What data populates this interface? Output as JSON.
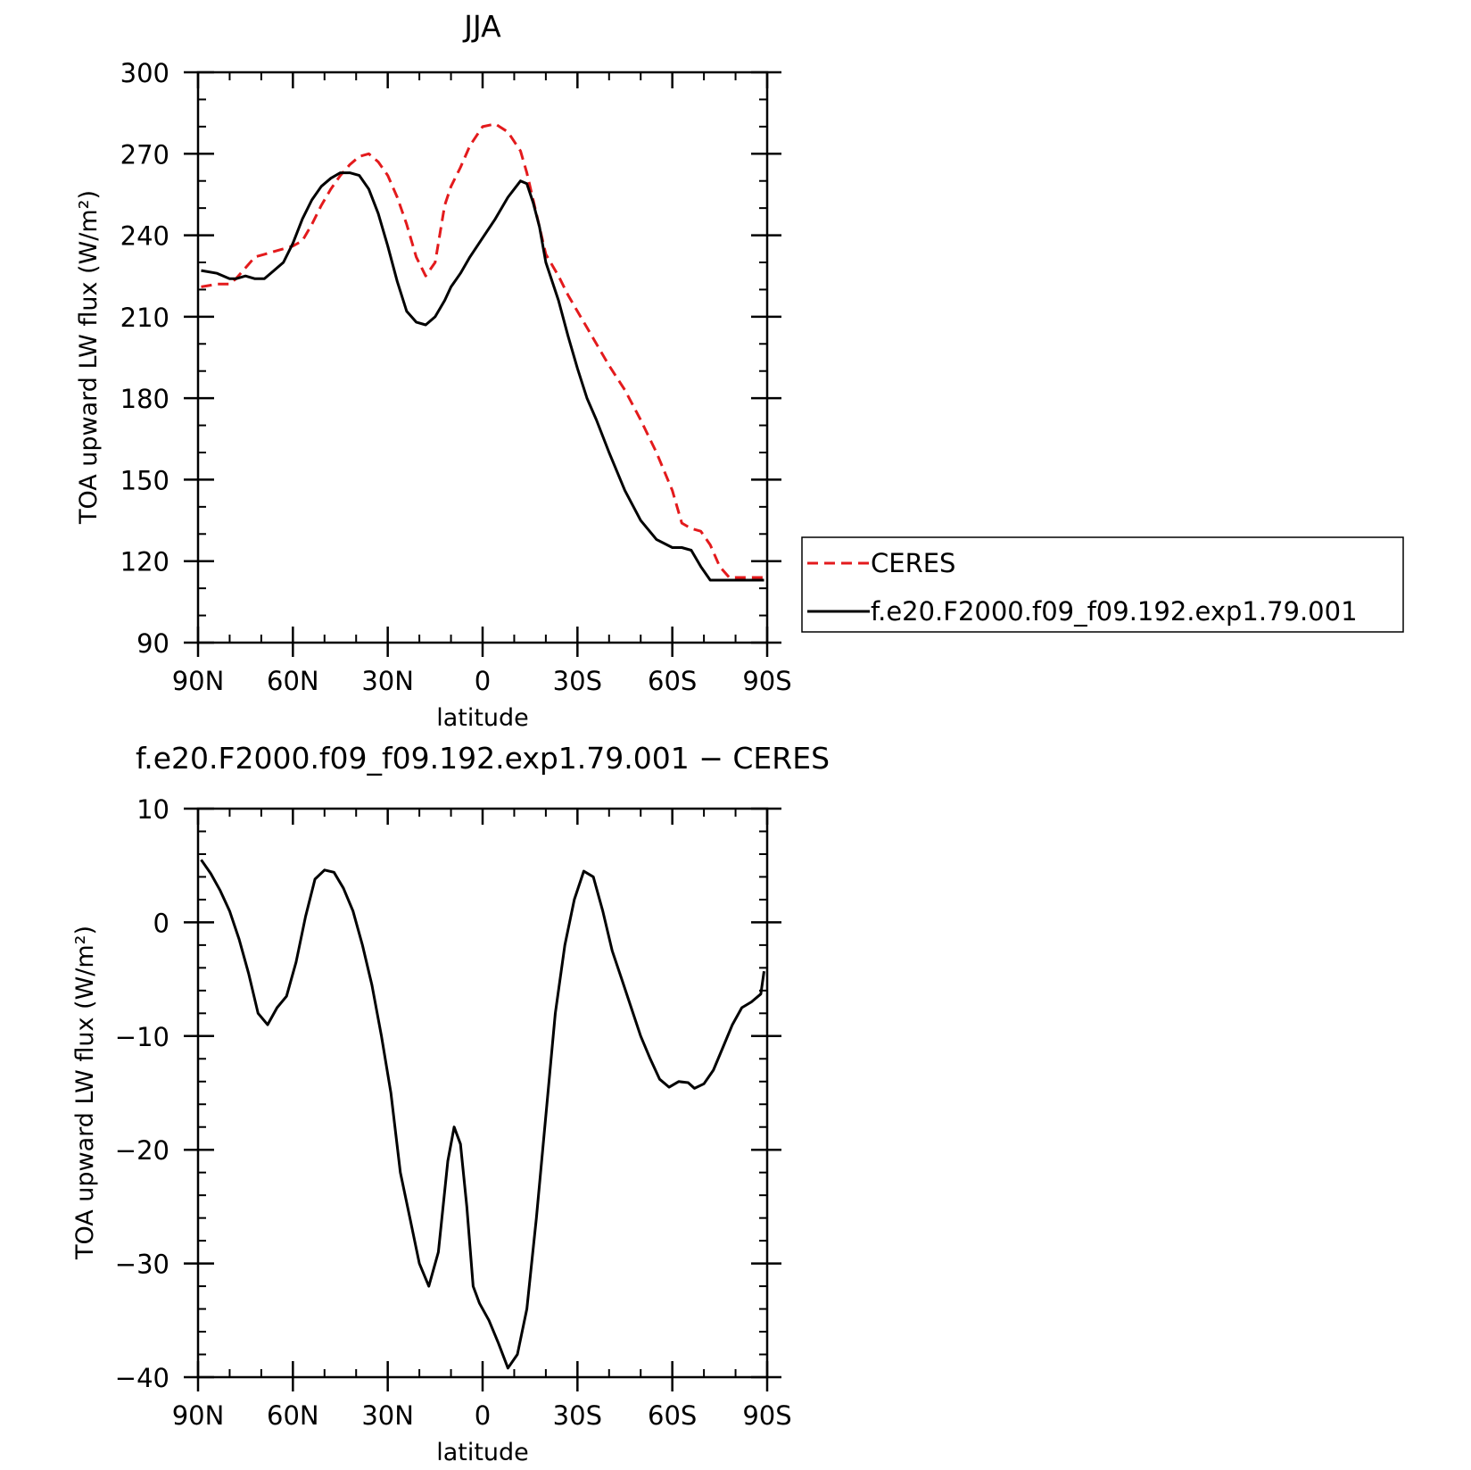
{
  "chart_data": [
    {
      "type": "line",
      "title": "JJA",
      "xlabel": "latitude",
      "ylabel": "TOA upward LW flux (W/m²)",
      "xlim": [
        90,
        -90
      ],
      "ylim": [
        90,
        300
      ],
      "x_ticks": [
        90,
        60,
        30,
        0,
        -30,
        -60,
        -90
      ],
      "x_tick_labels": [
        "90N",
        "60N",
        "30N",
        "0",
        "30S",
        "60S",
        "90S"
      ],
      "y_ticks": [
        90,
        120,
        150,
        180,
        210,
        240,
        270,
        300
      ],
      "y_tick_labels": [
        "90",
        "120",
        "150",
        "180",
        "210",
        "240",
        "270",
        "300"
      ],
      "legend": {
        "position": "right",
        "entries": [
          "CERES",
          "f.e20.F2000.f09_f09.192.exp1.79.001"
        ]
      },
      "series": [
        {
          "name": "CERES",
          "color": "#e31a1c",
          "dash": "dashed",
          "x": [
            89,
            84,
            80,
            78,
            75,
            72,
            69,
            66,
            63,
            60,
            57,
            54,
            51,
            48,
            45,
            42,
            39,
            36,
            33,
            30,
            27,
            24,
            21,
            18,
            15,
            12,
            10,
            7,
            4,
            0,
            -4,
            -8,
            -12,
            -14,
            -16,
            -18,
            -20,
            -24,
            -27,
            -30,
            -33,
            -36,
            -40,
            -45,
            -50,
            -55,
            -60,
            -63,
            -66,
            -69,
            -72,
            -75,
            -78,
            -81,
            -84,
            -87,
            -89
          ],
          "y": [
            221,
            222,
            222,
            224,
            228,
            232,
            233,
            234,
            235,
            236,
            238,
            244,
            251,
            257,
            262,
            266,
            269,
            270,
            267,
            262,
            254,
            244,
            232,
            225,
            230,
            251,
            258,
            265,
            273,
            280,
            281,
            278,
            271,
            263,
            253,
            243,
            233,
            225,
            218,
            212,
            206,
            200,
            192,
            183,
            172,
            160,
            146,
            134,
            132,
            131,
            126,
            118,
            114,
            114,
            114,
            114,
            114
          ]
        },
        {
          "name": "f.e20.F2000.f09_f09.192.exp1.79.001",
          "color": "#000000",
          "dash": "solid",
          "x": [
            89,
            84,
            80,
            78,
            75,
            72,
            69,
            66,
            63,
            60,
            57,
            54,
            51,
            48,
            45,
            42,
            39,
            36,
            33,
            30,
            27,
            24,
            21,
            18,
            15,
            12,
            10,
            7,
            4,
            0,
            -4,
            -8,
            -12,
            -14,
            -16,
            -18,
            -20,
            -24,
            -27,
            -30,
            -33,
            -36,
            -40,
            -45,
            -50,
            -55,
            -60,
            -63,
            -66,
            -69,
            -72,
            -75,
            -78,
            -81,
            -84,
            -87,
            -89
          ],
          "y": [
            227,
            226,
            224,
            224,
            225,
            224,
            224,
            227,
            230,
            237,
            246,
            253,
            258,
            261,
            263,
            263,
            262,
            257,
            248,
            236,
            223,
            212,
            208,
            207,
            210,
            216,
            221,
            226,
            232,
            239,
            246,
            254,
            260,
            259,
            252,
            243,
            230,
            216,
            203,
            191,
            180,
            172,
            160,
            146,
            135,
            128,
            125,
            125,
            124,
            118,
            113,
            113,
            113,
            113,
            113,
            113,
            113
          ]
        }
      ]
    },
    {
      "type": "line",
      "title": "f.e20.F2000.f09_f09.192.exp1.79.001 − CERES",
      "xlabel": "latitude",
      "ylabel": "TOA upward LW flux (W/m²)",
      "xlim": [
        90,
        -90
      ],
      "ylim": [
        -40,
        10
      ],
      "x_ticks": [
        90,
        60,
        30,
        0,
        -30,
        -60,
        -90
      ],
      "x_tick_labels": [
        "90N",
        "60N",
        "30N",
        "0",
        "30S",
        "60S",
        "90S"
      ],
      "y_ticks": [
        -40,
        -30,
        -20,
        -10,
        0,
        10
      ],
      "y_tick_labels": [
        "−40",
        "−30",
        "−20",
        "−10",
        "0",
        "10"
      ],
      "series": [
        {
          "color": "#000000",
          "dash": "solid",
          "x": [
            89,
            86,
            83,
            80,
            77,
            74,
            71,
            68,
            65,
            62,
            59,
            56,
            53,
            50,
            47,
            44,
            41,
            38,
            35,
            32,
            29,
            26,
            23,
            20,
            17,
            14,
            11,
            9,
            7,
            5,
            3,
            1,
            -2,
            -5,
            -8,
            -11,
            -14,
            -17,
            -20,
            -23,
            -26,
            -29,
            -32,
            -35,
            -38,
            -41,
            -44,
            -47,
            -50,
            -53,
            -56,
            -59,
            -62,
            -65,
            -67,
            -70,
            -73,
            -76,
            -79,
            -82,
            -85,
            -88,
            -89
          ],
          "y": [
            5.5,
            4.3,
            2.8,
            1.0,
            -1.5,
            -4.5,
            -8.0,
            -9.0,
            -7.5,
            -6.5,
            -3.5,
            0.5,
            3.8,
            4.6,
            4.4,
            3.0,
            1.0,
            -2.0,
            -5.5,
            -10.0,
            -15.0,
            -22.0,
            -26.0,
            -30.0,
            -32.0,
            -29.0,
            -21.0,
            -18.0,
            -19.5,
            -25.0,
            -32.0,
            -33.5,
            -35.0,
            -37.0,
            -39.2,
            -38.0,
            -34.0,
            -26.0,
            -17.0,
            -8.0,
            -2.0,
            2.0,
            4.5,
            4.0,
            1.0,
            -2.5,
            -5.0,
            -7.5,
            -10.0,
            -12.0,
            -13.8,
            -14.5,
            -14.0,
            -14.1,
            -14.6,
            -14.2,
            -13.0,
            -11.0,
            -9.0,
            -7.5,
            -7.0,
            -6.3,
            -4.3
          ]
        }
      ]
    }
  ]
}
